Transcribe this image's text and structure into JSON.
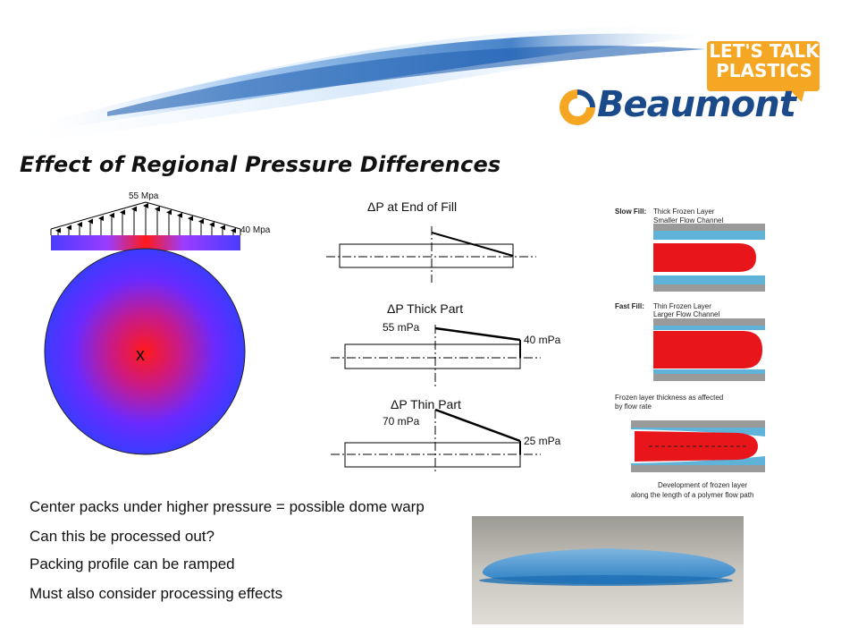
{
  "brand": {
    "badge_line1": "LET'S TALK",
    "badge_line2": "PLASTICS",
    "company": "Beaumont",
    "colors": {
      "orange": "#f5a623",
      "navy": "#1a4a8a",
      "swoosh": "#2a6fc0"
    }
  },
  "title": "Effect of Regional Pressure Differences",
  "disc": {
    "top_label": "55 Mpa",
    "side_label": "40 Mpa",
    "center_mark": "x",
    "colors": {
      "center": "#ff1a1a",
      "edge": "#3b3bff"
    }
  },
  "profiles": [
    {
      "title": "ΔP at End of Fill",
      "left_value": "",
      "right_value": ""
    },
    {
      "title": "ΔP Thick Part",
      "left_value": "55 mPa",
      "right_value": "40 mPa"
    },
    {
      "title": "ΔP Thin Part",
      "left_value": "70 mPa",
      "right_value": "25 mPa"
    }
  ],
  "fill_panel": {
    "slow_fill_title": "Slow Fill:",
    "slow_fill_text1": "Thick Frozen Layer",
    "slow_fill_text2": "Smaller Flow Channel",
    "fast_fill_title": "Fast Fill:",
    "fast_fill_text1": "Thin Frozen Layer",
    "fast_fill_text2": "Larger Flow Channel",
    "frozen_caption1": "Frozen layer thickness as affected",
    "frozen_caption2": "by flow rate",
    "dev_caption1": "Development of frozen layer",
    "dev_caption2": "along the length of a polymer flow path"
  },
  "bullets": [
    "Center packs under higher pressure = possible dome warp",
    "Can this be processed out?",
    "Packing profile can be ramped",
    "Must also consider processing effects"
  ]
}
